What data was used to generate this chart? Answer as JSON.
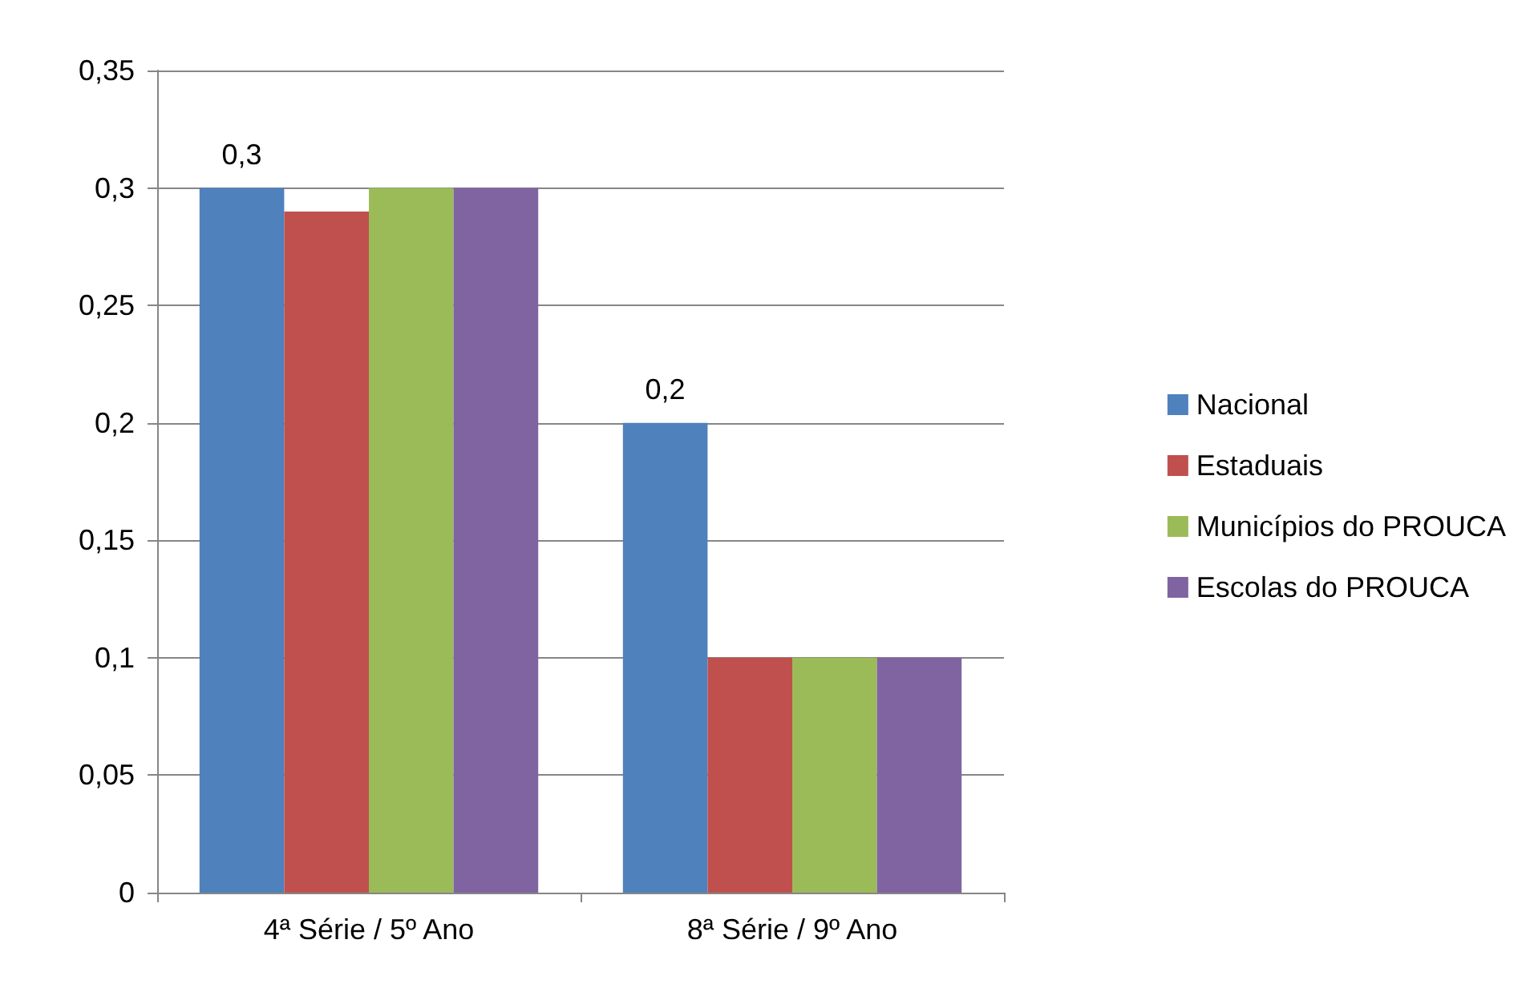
{
  "chart_data": {
    "type": "bar",
    "categories": [
      "4ª Série / 5º Ano",
      "8ª Série / 9º Ano"
    ],
    "series": [
      {
        "name": "Nacional",
        "color": "#4f81bd",
        "values": [
          0.3,
          0.2
        ],
        "value_labels": [
          "0,3",
          "0,2"
        ]
      },
      {
        "name": "Estaduais",
        "color": "#c0504d",
        "values": [
          0.29,
          0.1
        ]
      },
      {
        "name": "Municípios do PROUCA",
        "color": "#9bbb59",
        "values": [
          0.3,
          0.1
        ]
      },
      {
        "name": "Escolas do PROUCA",
        "color": "#8064a2",
        "values": [
          0.3,
          0.1
        ]
      }
    ],
    "ylim": [
      0,
      0.35
    ],
    "yticks": [
      0,
      {
        "value": 0.05,
        "label": "0,05"
      },
      {
        "value": 0.1,
        "label": "0,1"
      },
      {
        "value": 0.15,
        "label": "0,15"
      },
      {
        "value": 0.2,
        "label": "0,2"
      },
      {
        "value": 0.25,
        "label": "0,25"
      },
      {
        "value": 0.3,
        "label": "0,3"
      },
      {
        "value": 0.35,
        "label": "0,35"
      }
    ],
    "grid": "y",
    "legend": "right"
  }
}
